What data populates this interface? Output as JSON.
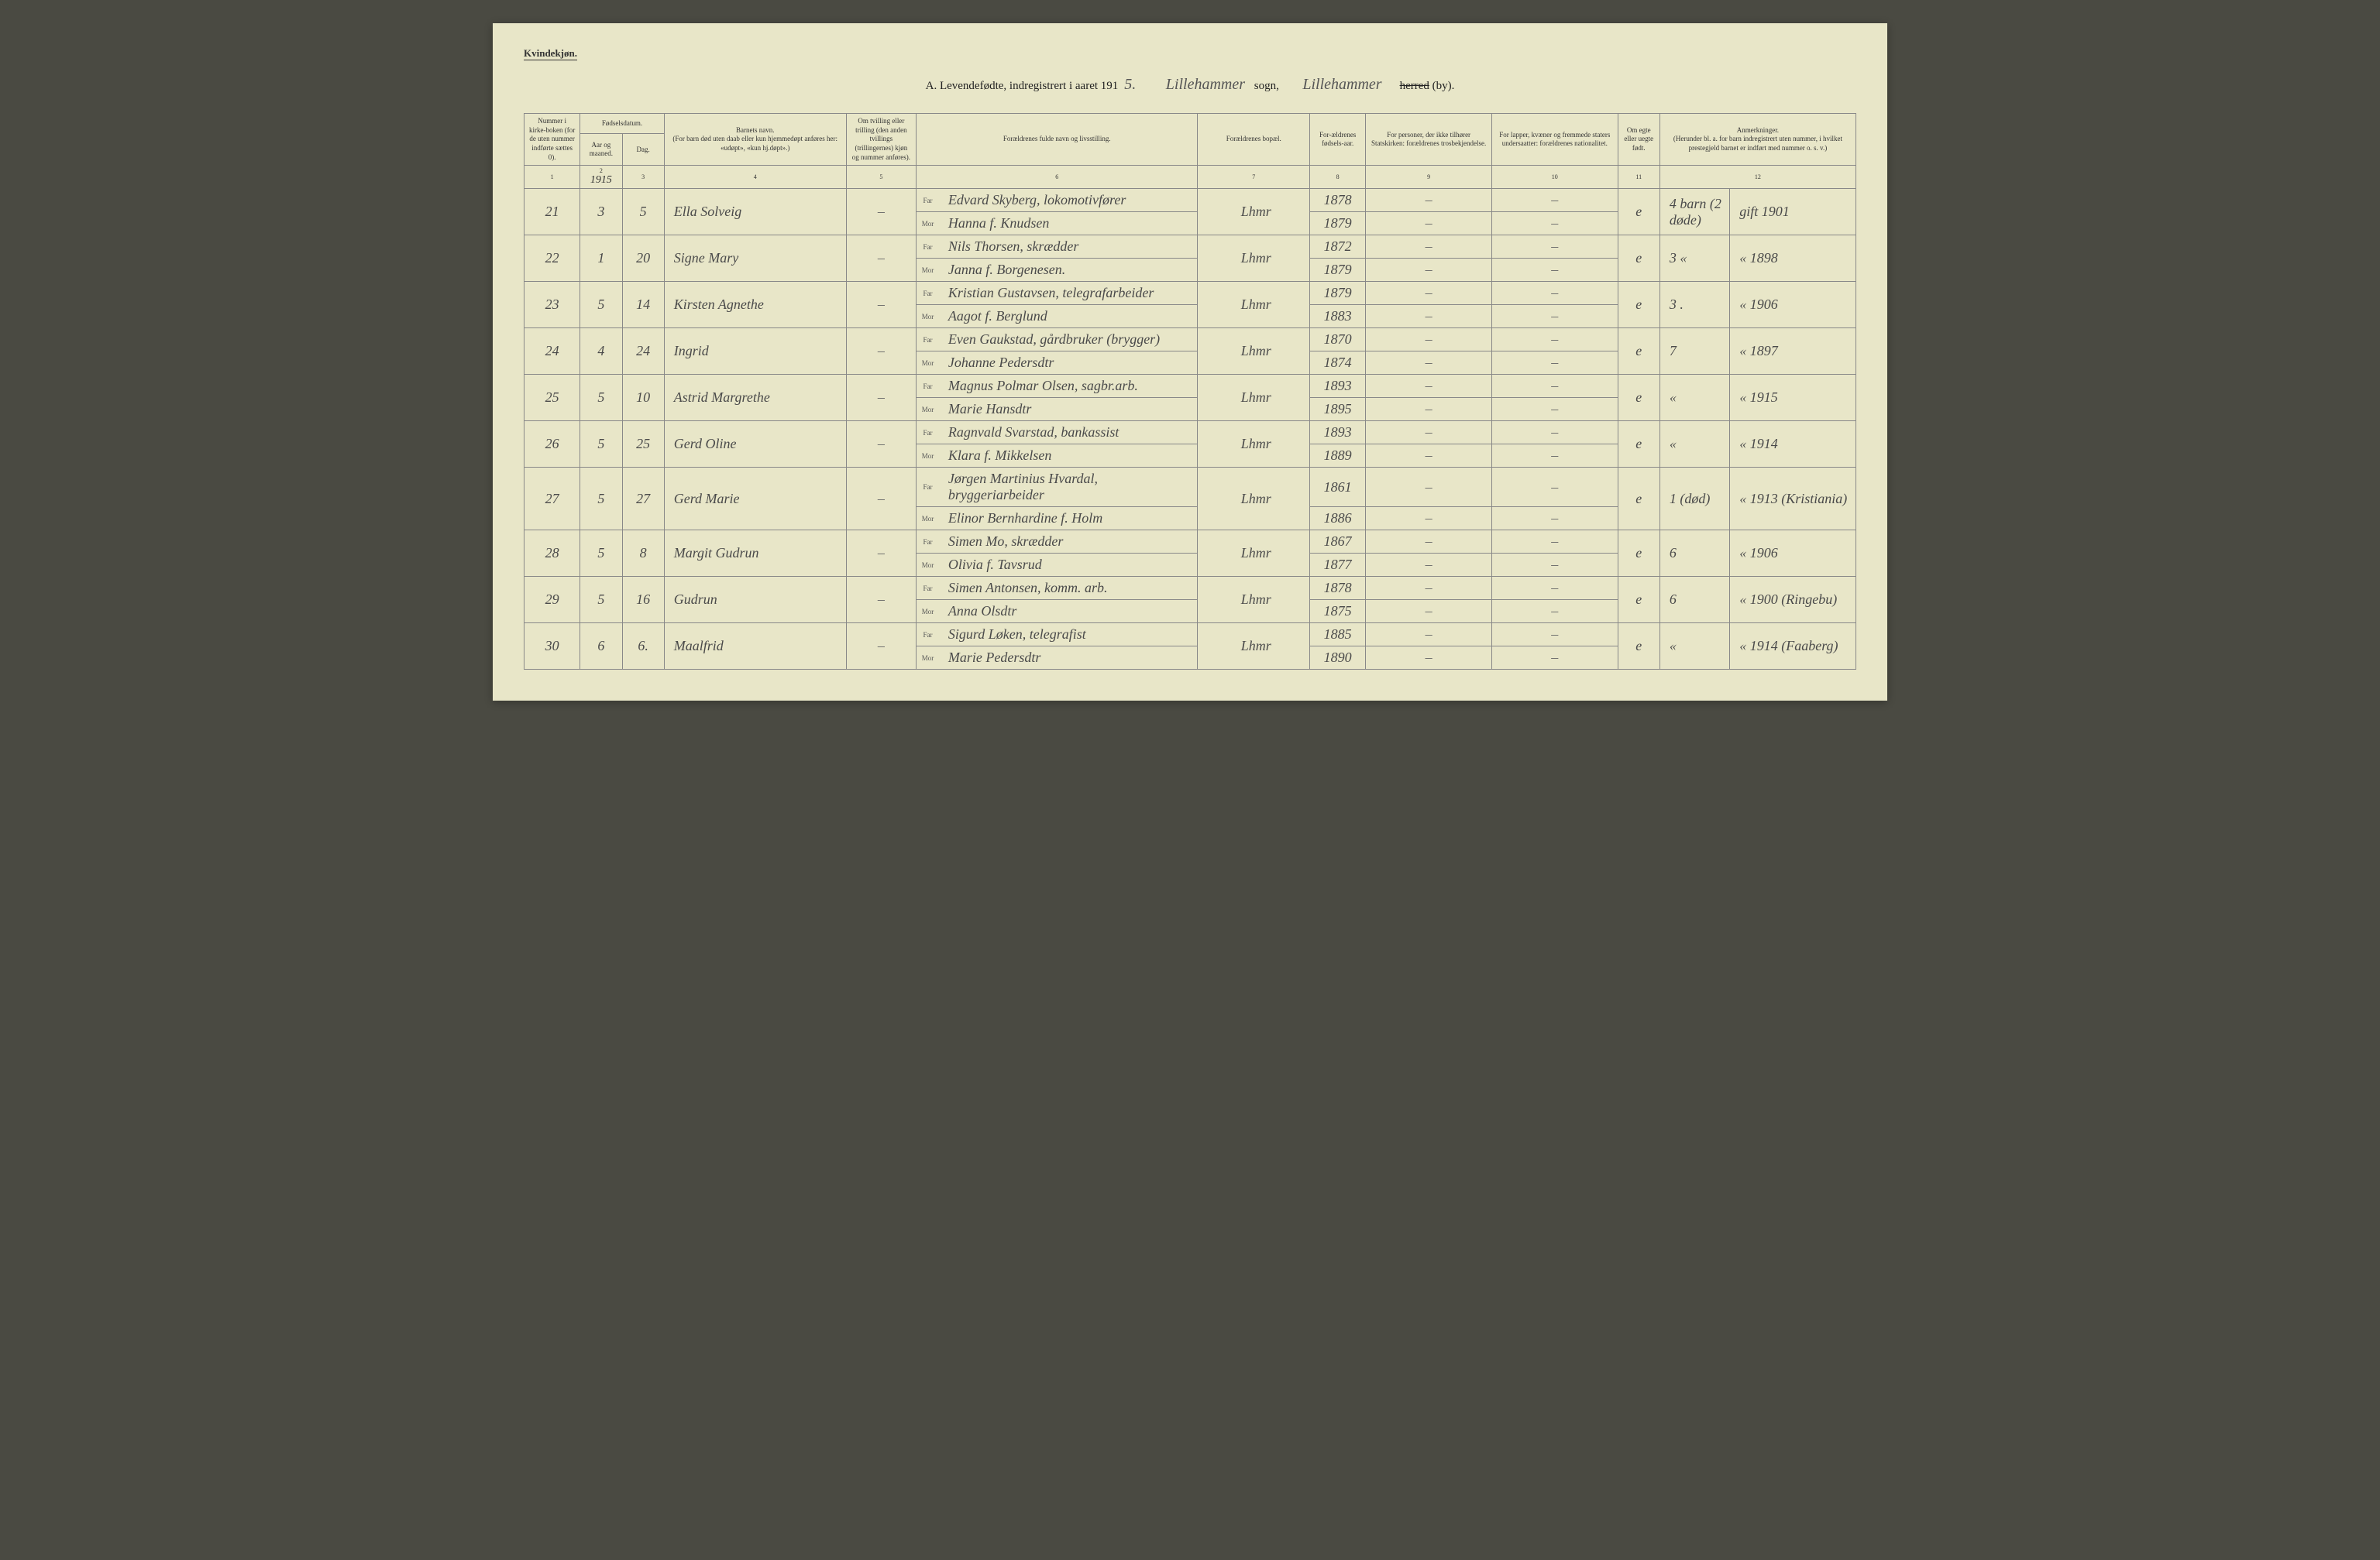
{
  "header": {
    "gender_label": "Kvindekjøn.",
    "title_prefix": "A.  Levendefødte, indregistrert i aaret 191",
    "year_suffix": "5.",
    "sogn_hand": "Lillehammer",
    "sogn_label": "sogn,",
    "herred_hand": "Lillehammer",
    "herred_label_strike": "herred",
    "herred_label_rest": " (by)."
  },
  "columns": {
    "c1": "Nummer i kirke-boken (for de uten nummer indførte sættes 0).",
    "c2_group": "Fødselsdatum.",
    "c2a": "Aar og maaned.",
    "c2b": "Dag.",
    "c3": "Barnets navn.",
    "c3_sub": "(For barn død uten daab eller kun hjemmedøpt anføres her: «udøpt», «kun hj.døpt».)",
    "c4": "Om tvilling eller trilling (den anden tvillings (trillingernes) kjøn og nummer anføres).",
    "c5": "Forældrenes fulde navn og livsstilling.",
    "c6": "Forældrenes bopæl.",
    "c7": "For-ældrenes fødsels-aar.",
    "c8": "For personer, der ikke tilhører Statskirken: forældrenes trosbekjendelse.",
    "c9": "For lapper, kvæner og fremmede staters undersaatter: forældrenes nationalitet.",
    "c10": "Om egte eller uegte født.",
    "c11": "Anmerkninger.",
    "c11_sub": "(Herunder bl. a. for barn indregistrert uten nummer, i hvilket prestegjeld barnet er indført med nummer o. s. v.)"
  },
  "colnums": [
    "1",
    "2",
    "3",
    "4",
    "5",
    "6",
    "7",
    "8",
    "9",
    "10",
    "11",
    "12"
  ],
  "year_in_col2": "1915",
  "far_label": "Far",
  "mor_label": "Mor",
  "rows": [
    {
      "num": "21",
      "month": "3",
      "day": "5",
      "name": "Ella Solveig",
      "twin": "–",
      "far": "Edvard Skyberg, lokomotivfører",
      "mor": "Hanna f. Knudsen",
      "bopael": "Lhmr",
      "far_year": "1878",
      "mor_year": "1879",
      "c8f": "–",
      "c8m": "–",
      "c9f": "–",
      "c9m": "–",
      "egte": "e",
      "anm1": "4 barn (2 døde)",
      "anm2": "gift 1901"
    },
    {
      "num": "22",
      "month": "1",
      "day": "20",
      "name": "Signe Mary",
      "twin": "–",
      "far": "Nils Thorsen, skrædder",
      "mor": "Janna f. Borgenesen.",
      "bopael": "Lhmr",
      "far_year": "1872",
      "mor_year": "1879",
      "c8f": "–",
      "c8m": "–",
      "c9f": "–",
      "c9m": "–",
      "egte": "e",
      "anm1": "3 «",
      "anm2": "« 1898"
    },
    {
      "num": "23",
      "month": "5",
      "day": "14",
      "name": "Kirsten Agnethe",
      "twin": "–",
      "far": "Kristian Gustavsen, telegrafarbeider",
      "mor": "Aagot f. Berglund",
      "bopael": "Lhmr",
      "far_year": "1879",
      "mor_year": "1883",
      "c8f": "–",
      "c8m": "–",
      "c9f": "–",
      "c9m": "–",
      "egte": "e",
      "anm1": "3 .",
      "anm2": "« 1906"
    },
    {
      "num": "24",
      "month": "4",
      "day": "24",
      "name": "Ingrid",
      "twin": "–",
      "far": "Even Gaukstad, gårdbruker (brygger)",
      "mor": "Johanne Pedersdtr",
      "bopael": "Lhmr",
      "far_year": "1870",
      "mor_year": "1874",
      "c8f": "–",
      "c8m": "–",
      "c9f": "–",
      "c9m": "–",
      "egte": "e",
      "anm1": "7",
      "anm2": "« 1897"
    },
    {
      "num": "25",
      "month": "5",
      "day": "10",
      "name": "Astrid Margrethe",
      "twin": "–",
      "far": "Magnus Polmar Olsen, sagbr.arb.",
      "mor": "Marie Hansdtr",
      "bopael": "Lhmr",
      "far_year": "1893",
      "mor_year": "1895",
      "c8f": "–",
      "c8m": "–",
      "c9f": "–",
      "c9m": "–",
      "egte": "e",
      "anm1": "«",
      "anm2": "« 1915"
    },
    {
      "num": "26",
      "month": "5",
      "day": "25",
      "name": "Gerd Oline",
      "twin": "–",
      "far": "Ragnvald Svarstad, bankassist",
      "mor": "Klara f. Mikkelsen",
      "bopael": "Lhmr",
      "far_year": "1893",
      "mor_year": "1889",
      "c8f": "–",
      "c8m": "–",
      "c9f": "–",
      "c9m": "–",
      "egte": "e",
      "anm1": "«",
      "anm2": "« 1914"
    },
    {
      "num": "27",
      "month": "5",
      "day": "27",
      "name": "Gerd Marie",
      "twin": "–",
      "far": "Jørgen Martinius Hvardal, bryggeriarbeider",
      "mor": "Elinor Bernhardine f. Holm",
      "bopael": "Lhmr",
      "far_year": "1861",
      "mor_year": "1886",
      "c8f": "–",
      "c8m": "–",
      "c9f": "–",
      "c9m": "–",
      "egte": "e",
      "anm1": "1 (død)",
      "anm2": "« 1913 (Kristiania)"
    },
    {
      "num": "28",
      "month": "5",
      "day": "8",
      "name": "Margit Gudrun",
      "twin": "–",
      "far": "Simen Mo, skrædder",
      "mor": "Olivia f. Tavsrud",
      "bopael": "Lhmr",
      "far_year": "1867",
      "mor_year": "1877",
      "c8f": "–",
      "c8m": "–",
      "c9f": "–",
      "c9m": "–",
      "egte": "e",
      "anm1": "6",
      "anm2": "« 1906"
    },
    {
      "num": "29",
      "month": "5",
      "day": "16",
      "name": "Gudrun",
      "twin": "–",
      "far": "Simen Antonsen, komm. arb.",
      "mor": "Anna Olsdtr",
      "bopael": "Lhmr",
      "far_year": "1878",
      "mor_year": "1875",
      "c8f": "–",
      "c8m": "–",
      "c9f": "–",
      "c9m": "–",
      "egte": "e",
      "anm1": "6",
      "anm2": "« 1900 (Ringebu)"
    },
    {
      "num": "30",
      "month": "6",
      "day": "6.",
      "name": "Maalfrid",
      "twin": "–",
      "far": "Sigurd Løken, telegrafist",
      "mor": "Marie Pedersdtr",
      "bopael": "Lhmr",
      "far_year": "1885",
      "mor_year": "1890",
      "c8f": "–",
      "c8m": "–",
      "c9f": "–",
      "c9m": "–",
      "egte": "e",
      "anm1": "«",
      "anm2": "« 1914 (Faaberg)"
    }
  ]
}
